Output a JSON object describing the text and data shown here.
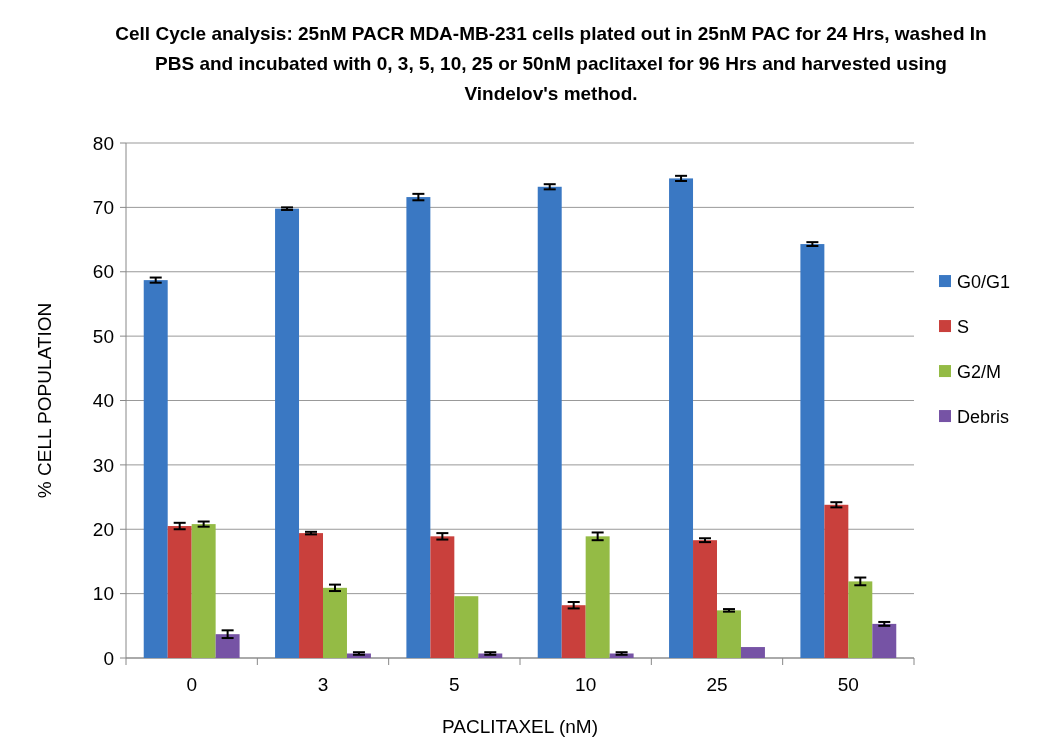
{
  "chart_data": {
    "type": "bar",
    "title": "Cell Cycle analysis:  25nM PACR MDA-MB-231 cells plated out in 25nM PAC for 24 Hrs, washed In PBS and incubated with 0, 3, 5, 10, 25 or 50nM paclitaxel for 96 Hrs and harvested using Vindelov's method.",
    "xlabel": "PACLITAXEL (nM)",
    "ylabel": "% CELL POPULATION",
    "categories": [
      "0",
      "3",
      "5",
      "10",
      "25",
      "50"
    ],
    "series": [
      {
        "name": "G0/G1",
        "color": "#3a78c3",
        "values": [
          58.7,
          69.8,
          71.6,
          73.2,
          74.5,
          64.3
        ],
        "errors": [
          0.4,
          0.2,
          0.5,
          0.4,
          0.4,
          0.3
        ]
      },
      {
        "name": "S",
        "color": "#c9403c",
        "values": [
          20.5,
          19.4,
          18.9,
          8.2,
          18.3,
          23.8
        ],
        "errors": [
          0.5,
          0.2,
          0.5,
          0.5,
          0.3,
          0.4
        ]
      },
      {
        "name": "G2/M",
        "color": "#94bb45",
        "values": [
          20.8,
          10.9,
          9.6,
          18.9,
          7.4,
          11.9
        ],
        "errors": [
          0.4,
          0.5,
          null,
          0.6,
          0.2,
          0.6
        ]
      },
      {
        "name": "Debris",
        "color": "#7653a5",
        "values": [
          3.7,
          0.7,
          0.7,
          0.7,
          1.7,
          5.3
        ],
        "errors": [
          0.6,
          0.2,
          0.2,
          0.2,
          null,
          0.3
        ]
      }
    ],
    "ylim": [
      0,
      80
    ],
    "yticks": [
      0,
      10,
      20,
      30,
      40,
      50,
      60,
      70,
      80
    ],
    "grid": "y",
    "legend": "right"
  }
}
